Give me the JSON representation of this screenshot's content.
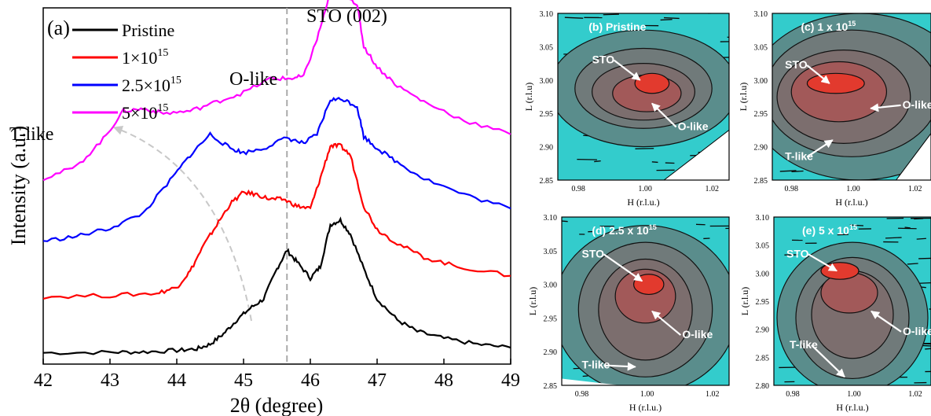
{
  "chart_data": [
    {
      "type": "line",
      "panel": "(a)",
      "xlabel": "2θ (degree)",
      "ylabel": "Intensity (a.u.)",
      "xlim": [
        42,
        49
      ],
      "xticks": [
        "42",
        "43",
        "44",
        "45",
        "46",
        "47",
        "48",
        "49"
      ],
      "legend_placement": "top-left",
      "legend": [
        {
          "label": "Pristine",
          "color": "#000000"
        },
        {
          "label": "1×10",
          "sup": "15",
          "color": "#ff0000"
        },
        {
          "label": "2.5×10",
          "sup": "15",
          "color": "#0000ff"
        },
        {
          "label": "5×10",
          "sup": "15",
          "color": "#ff00ff"
        }
      ],
      "annotations": {
        "sto": "STO (002)",
        "olike": "O-like",
        "tlike": "T-like"
      },
      "sto_line_x": 45.65,
      "series": [
        {
          "name": "Pristine",
          "color": "#000000",
          "offset": 0,
          "points": [
            [
              42.0,
              0.08
            ],
            [
              43.0,
              0.1
            ],
            [
              43.5,
              0.12
            ],
            [
              44.0,
              0.18
            ],
            [
              44.3,
              0.25
            ],
            [
              44.5,
              0.45
            ],
            [
              44.7,
              0.9
            ],
            [
              44.9,
              1.5
            ],
            [
              45.1,
              2.0
            ],
            [
              45.3,
              2.4
            ],
            [
              45.5,
              3.7
            ],
            [
              45.65,
              4.5
            ],
            [
              45.8,
              4.0
            ],
            [
              46.0,
              3.3
            ],
            [
              46.15,
              3.8
            ],
            [
              46.3,
              5.6
            ],
            [
              46.45,
              5.8
            ],
            [
              46.6,
              5.2
            ],
            [
              46.8,
              3.7
            ],
            [
              47.0,
              2.4
            ],
            [
              47.3,
              1.5
            ],
            [
              47.6,
              1.0
            ],
            [
              48.0,
              0.7
            ],
            [
              48.5,
              0.45
            ],
            [
              49.0,
              0.3
            ]
          ]
        },
        {
          "name": "1×10^15",
          "color": "#ff0000",
          "offset": 2.4,
          "points": [
            [
              42.0,
              0.1
            ],
            [
              43.0,
              0.15
            ],
            [
              43.7,
              0.25
            ],
            [
              44.0,
              0.5
            ],
            [
              44.2,
              1.2
            ],
            [
              44.4,
              2.3
            ],
            [
              44.6,
              3.2
            ],
            [
              44.8,
              4.1
            ],
            [
              45.0,
              4.6
            ],
            [
              45.2,
              4.5
            ],
            [
              45.4,
              4.3
            ],
            [
              45.6,
              4.3
            ],
            [
              45.8,
              4.0
            ],
            [
              46.0,
              3.9
            ],
            [
              46.15,
              5.2
            ],
            [
              46.3,
              6.6
            ],
            [
              46.45,
              6.6
            ],
            [
              46.6,
              6.2
            ],
            [
              46.8,
              4.0
            ],
            [
              47.0,
              3.0
            ],
            [
              47.3,
              2.4
            ],
            [
              47.7,
              1.8
            ],
            [
              48.2,
              1.4
            ],
            [
              49.0,
              1.0
            ]
          ]
        },
        {
          "name": "2.5×10^15",
          "color": "#0000ff",
          "offset": 4.8,
          "points": [
            [
              42.0,
              0.1
            ],
            [
              42.5,
              0.3
            ],
            [
              43.0,
              0.65
            ],
            [
              43.5,
              1.3
            ],
            [
              43.9,
              2.7
            ],
            [
              44.2,
              3.8
            ],
            [
              44.5,
              4.7
            ],
            [
              44.8,
              4.1
            ],
            [
              45.0,
              3.9
            ],
            [
              45.3,
              4.1
            ],
            [
              45.65,
              4.55
            ],
            [
              45.9,
              4.3
            ],
            [
              46.1,
              4.7
            ],
            [
              46.3,
              6.2
            ],
            [
              46.5,
              6.2
            ],
            [
              46.7,
              5.9
            ],
            [
              46.8,
              4.6
            ],
            [
              47.0,
              4.1
            ],
            [
              47.3,
              3.5
            ],
            [
              47.7,
              2.8
            ],
            [
              48.3,
              2.1
            ],
            [
              49.0,
              1.5
            ]
          ]
        },
        {
          "name": "5×10^15",
          "color": "#ff00ff",
          "offset": 7.2,
          "points": [
            [
              42.0,
              0.4
            ],
            [
              42.5,
              0.9
            ],
            [
              42.9,
              2.1
            ],
            [
              43.2,
              3.3
            ],
            [
              43.5,
              3.4
            ],
            [
              43.8,
              3.2
            ],
            [
              44.2,
              3.3
            ],
            [
              44.6,
              3.7
            ],
            [
              45.0,
              4.1
            ],
            [
              45.4,
              4.7
            ],
            [
              45.7,
              4.7
            ],
            [
              45.9,
              4.8
            ],
            [
              46.1,
              6.4
            ],
            [
              46.3,
              8.4
            ],
            [
              46.5,
              8.4
            ],
            [
              46.7,
              7.9
            ],
            [
              46.8,
              6.1
            ],
            [
              47.0,
              5.2
            ],
            [
              47.3,
              4.4
            ],
            [
              47.7,
              3.7
            ],
            [
              48.3,
              2.9
            ],
            [
              49.0,
              2.3
            ]
          ]
        }
      ]
    },
    {
      "type": "heatmap",
      "panel": "(b) Pristine",
      "xlabel": "H (r.l.u.)",
      "ylabel": "L (r.l.u)",
      "xticks": [
        "0.98",
        "1.00",
        "1.02"
      ],
      "yticks": [
        "3.10",
        "3.05",
        "3.00",
        "2.95",
        "2.90",
        "2.85"
      ],
      "labels": {
        "sto": "STO",
        "olike": "O-like"
      }
    },
    {
      "type": "heatmap",
      "panel": "(c) 1 x 10",
      "panel_sup": "15",
      "xlabel": "H (r.l.u.)",
      "ylabel": "L (r.l.u)",
      "xticks": [
        "0.98",
        "1.00",
        "1.02"
      ],
      "yticks": [
        "3.10",
        "3.05",
        "3.00",
        "2.95",
        "2.90",
        "2.85"
      ],
      "labels": {
        "sto": "STO",
        "olike": "O-like",
        "tlike": "T-like"
      }
    },
    {
      "type": "heatmap",
      "panel": "(d) 2.5 x 10",
      "panel_sup": "15",
      "xlabel": "H (r.l.u.)",
      "ylabel": "L (r.l.u)",
      "xticks": [
        "0.98",
        "1.00",
        "1.02"
      ],
      "yticks": [
        "3.10",
        "3.05",
        "3.00",
        "2.95",
        "2.90",
        "2.85"
      ],
      "labels": {
        "sto": "STO",
        "olike": "O-like",
        "tlike": "T-like"
      }
    },
    {
      "type": "heatmap",
      "panel": "(e) 5 x 10",
      "panel_sup": "15",
      "xlabel": "H (r.l.u.)",
      "ylabel": "L (r.l.u)",
      "xticks": [
        "0.98",
        "1.00",
        "1.02"
      ],
      "yticks": [
        "3.10",
        "3.05",
        "3.00",
        "2.95",
        "2.90",
        "2.85",
        "2.80"
      ],
      "labels": {
        "sto": "STO",
        "olike": "O-like",
        "tlike": "T-like"
      }
    }
  ]
}
